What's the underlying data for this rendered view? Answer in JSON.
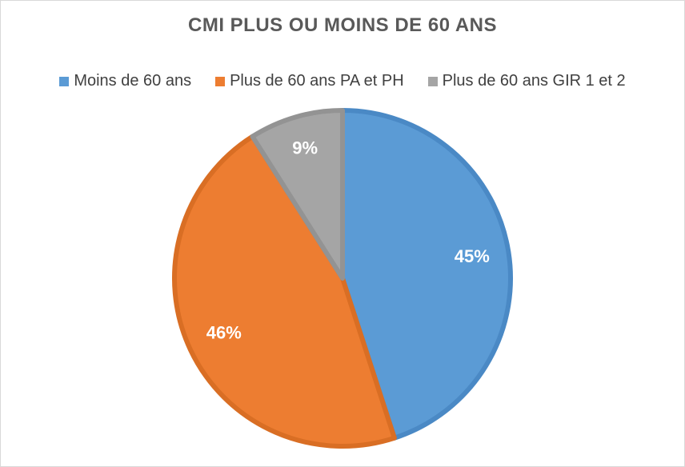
{
  "chart_data": {
    "type": "pie",
    "title": "CMI PLUS OU MOINS DE 60 ANS",
    "legend_position": "top",
    "categories": [
      "Moins de 60 ans",
      "Plus de 60 ans PA et PH",
      "Plus de 60 ans GIR 1 et 2"
    ],
    "values": [
      45,
      46,
      9
    ],
    "labels": [
      "45%",
      "46%",
      "9%"
    ],
    "colors": [
      "#5b9bd5",
      "#ed7d31",
      "#a5a5a5"
    ],
    "border_colors": [
      "#4a89c5",
      "#d96e24",
      "#939393"
    ]
  }
}
